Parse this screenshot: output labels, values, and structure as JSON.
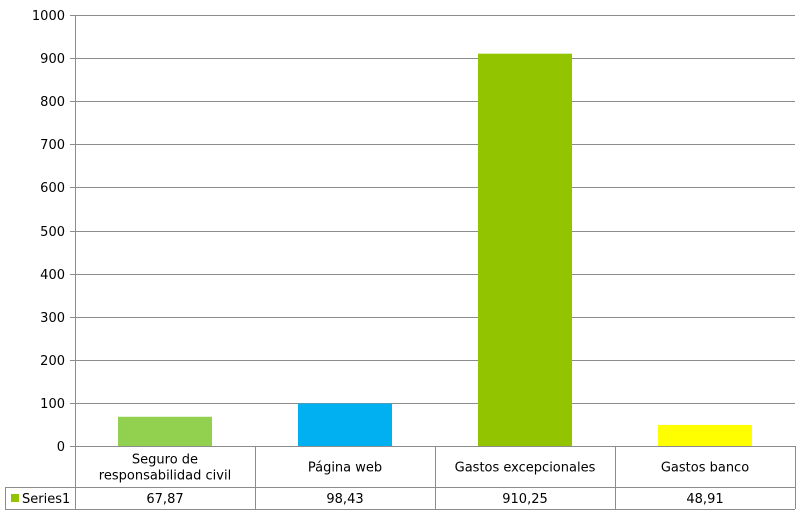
{
  "chart_data": {
    "type": "bar",
    "categories": [
      [
        "Seguro de",
        "responsabilidad civil"
      ],
      [
        "Página web"
      ],
      [
        "Gastos excepcionales"
      ],
      [
        "Gastos banco"
      ]
    ],
    "series": [
      {
        "name": "Series1",
        "values": [
          67.87,
          98.43,
          910.25,
          48.91
        ],
        "value_labels": [
          "67,87",
          "98,43",
          "910,25",
          "48,91"
        ],
        "colors": [
          "#92d050",
          "#00b0f0",
          "#92c400",
          "#ffff00"
        ]
      }
    ],
    "ylim": [
      0,
      1000
    ],
    "yticks": [
      "0",
      "100",
      "200",
      "300",
      "400",
      "500",
      "600",
      "700",
      "800",
      "900",
      "1000"
    ],
    "grid": true,
    "legend": "data-table",
    "legend_key_color": "#92c400",
    "gridline_color": "#8c8c8c"
  }
}
